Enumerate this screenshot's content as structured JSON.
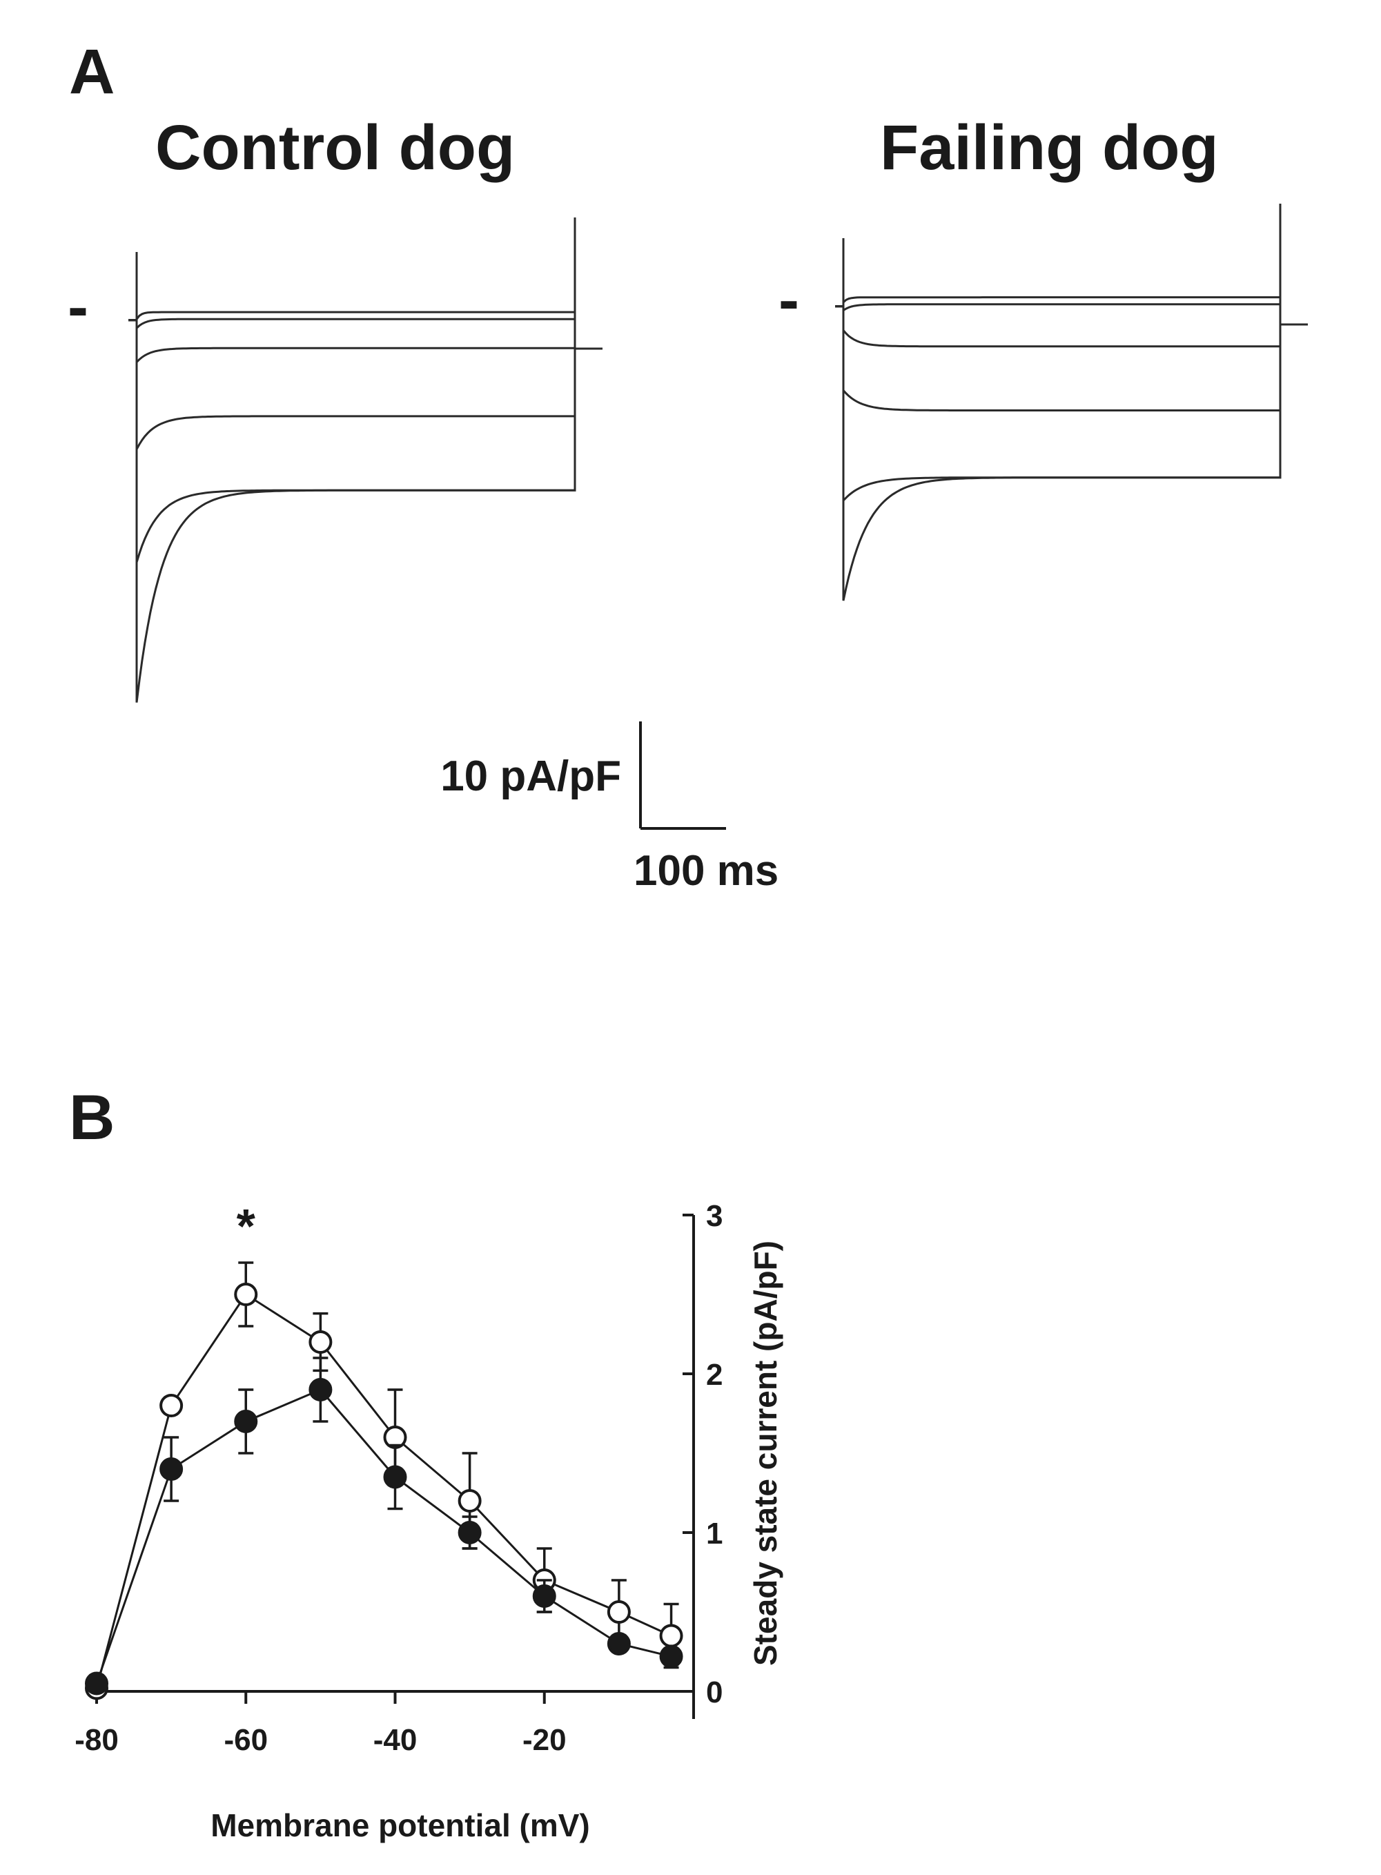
{
  "panelA": {
    "letter": "A",
    "control_title": "Control dog",
    "failing_title": "Failing dog",
    "holding_mark": "-",
    "scale_current": "10 pA/pF",
    "scale_time": "100 ms",
    "control_traces": [
      {
        "peak": -0.5,
        "steady": 0.2
      },
      {
        "peak": -1.4,
        "steady": -0.5
      },
      {
        "peak": -4.8,
        "steady": -3.4
      },
      {
        "peak": -13.5,
        "steady": -10.2
      },
      {
        "peak": -24.8,
        "steady": -17.6
      },
      {
        "peak": -38.8,
        "steady": -17.6
      }
    ],
    "failing_traces": [
      {
        "peak": -0.2,
        "steady": 0.3
      },
      {
        "peak": -1.0,
        "steady": -0.4
      },
      {
        "peak": -3.0,
        "steady": -4.6
      },
      {
        "peak": -9.0,
        "steady": -11.0
      },
      {
        "peak": -20.0,
        "steady": -17.7
      },
      {
        "peak": -30.0,
        "steady": -17.7
      }
    ],
    "colors": {
      "trace": "#2a2a2a"
    }
  },
  "chart_data": {
    "panel_letter": "B",
    "type": "line",
    "xlabel": "Membrane potential (mV)",
    "ylabel": "Steady state current (pA/pF)",
    "xlim": [
      -80,
      0
    ],
    "ylim": [
      0,
      3
    ],
    "x_ticks": [
      -80,
      -60,
      -40,
      -20
    ],
    "y_ticks": [
      0,
      1,
      2,
      3
    ],
    "annotation": {
      "text": "*",
      "x": -60
    },
    "x": [
      -80,
      -70,
      -60,
      -50,
      -40,
      -30,
      -20,
      -10,
      -3
    ],
    "series": [
      {
        "marker": "open-circle",
        "values": [
          0.02,
          1.8,
          2.5,
          2.2,
          1.6,
          1.2,
          0.7,
          0.5,
          0.35
        ],
        "errors": [
          0.03,
          0.05,
          0.2,
          0.18,
          0.3,
          0.3,
          0.2,
          0.2,
          0.2
        ]
      },
      {
        "marker": "filled-circle",
        "values": [
          0.05,
          1.4,
          1.7,
          1.9,
          1.35,
          1.0,
          0.6,
          0.3,
          0.22
        ],
        "errors": [
          0.05,
          0.2,
          0.2,
          0.2,
          0.2,
          0.1,
          0.1,
          0.05,
          0.05
        ]
      }
    ]
  }
}
